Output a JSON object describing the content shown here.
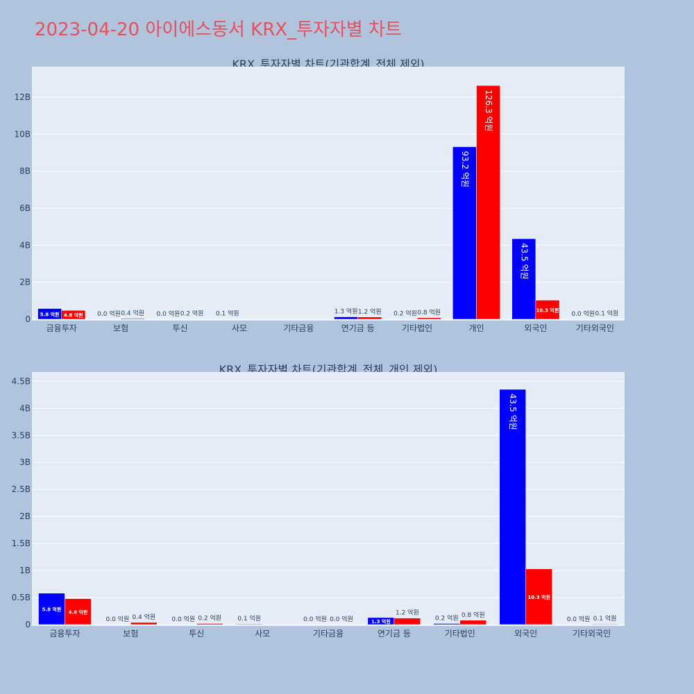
{
  "page_title": "2023-04-20 아이에스동서 KRX_투자자별 차트",
  "colors": {
    "background": "#b0c4de",
    "plot_bg": "#e5ecf6",
    "title": "#e8505b",
    "series_a": "#0000ff",
    "series_b": "#ff0000"
  },
  "chart_data": [
    {
      "type": "bar",
      "title": "KRX_투자자별 차트(기관합계_전체 제외)",
      "categories": [
        "금융투자",
        "보험",
        "투신",
        "사모",
        "기타금융",
        "연기금 등",
        "기타법인",
        "개인",
        "외국인",
        "기타외국인"
      ],
      "series": [
        {
          "values": [
            580000000,
            0,
            0,
            10000000,
            0,
            130000000,
            20000000,
            9320000000,
            4350000000,
            0
          ],
          "labels": [
            "5.8 억원",
            "0.0 억원",
            "0.0 억원",
            "0.1 억원",
            "",
            "1.3 억원",
            "0.2 억원",
            "93.2 억원",
            "43.5 억원",
            "0.0 억원"
          ]
        },
        {
          "values": [
            480000000,
            40000000,
            20000000,
            0,
            0,
            120000000,
            80000000,
            12630000000,
            1030000000,
            10000000
          ],
          "labels": [
            "4.8 억원",
            "0.4 억원",
            "0.2 억원",
            "",
            "",
            "1.2 억원",
            "0.8 억원",
            "126.3 억원",
            "10.3 억원",
            "0.1 억원"
          ]
        }
      ],
      "yticks": [
        "0",
        "2B",
        "4B",
        "6B",
        "8B",
        "10B",
        "12B"
      ],
      "ylim": [
        0,
        13500000000
      ]
    },
    {
      "type": "bar",
      "title": "KRX_투자자별 차트(기관합계_전체_개인 제외)",
      "categories": [
        "금융투자",
        "보험",
        "투신",
        "사모",
        "기타금융",
        "연기금 등",
        "기타법인",
        "외국인",
        "기타외국인"
      ],
      "series": [
        {
          "values": [
            580000000,
            0,
            0,
            10000000,
            0,
            130000000,
            20000000,
            4350000000,
            0
          ],
          "labels": [
            "5.8 억원",
            "0.0 억원",
            "0.0 억원",
            "0.1 억원",
            "0.0 억원",
            "1.3 억원",
            "0.2 억원",
            "43.5 억원",
            "0.0 억원"
          ]
        },
        {
          "values": [
            480000000,
            40000000,
            20000000,
            0,
            0,
            120000000,
            80000000,
            1030000000,
            10000000
          ],
          "labels": [
            "4.8 억원",
            "0.4 억원",
            "0.2 억원",
            "",
            "0.0 억원",
            "1.2 억원",
            "0.8 억원",
            "10.3 억원",
            "0.1 억원"
          ]
        }
      ],
      "yticks": [
        "0",
        "0.5B",
        "1B",
        "1.5B",
        "2B",
        "2.5B",
        "3B",
        "3.5B",
        "4B",
        "4.5B"
      ],
      "ylim": [
        0,
        4620000000
      ]
    }
  ]
}
